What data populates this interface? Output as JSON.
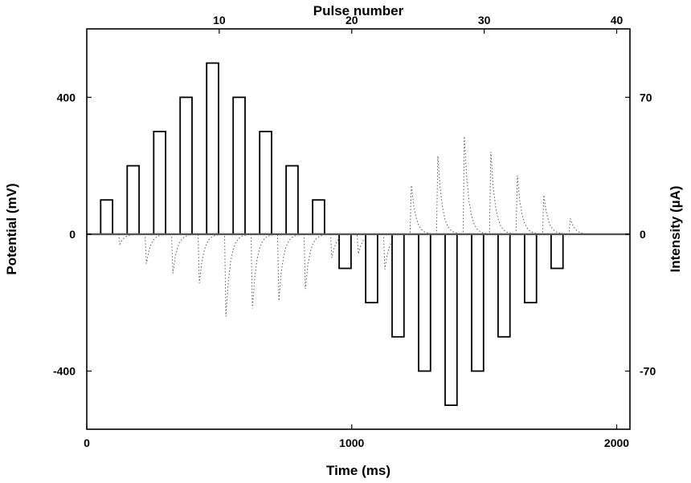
{
  "chart_data": {
    "type": "bar",
    "x_bottom": {
      "label": "Time (ms)",
      "range": [
        0,
        2050
      ],
      "ticks": [
        0,
        1000,
        2000
      ],
      "tick_labels": [
        "0",
        "1000",
        "2000"
      ]
    },
    "x_top": {
      "label": "Pulse number",
      "range": [
        0,
        41
      ],
      "ticks": [
        10,
        20,
        30,
        40
      ],
      "tick_labels": [
        "10",
        "20",
        "30",
        "40"
      ]
    },
    "y_left": {
      "label": "Potential (mV)",
      "range": [
        -570,
        600
      ],
      "ticks": [
        -400,
        0,
        400
      ],
      "tick_labels": [
        "-400",
        "0",
        "400"
      ]
    },
    "y_right": {
      "label": "Intensity (µA)",
      "range": [
        -99.75,
        105
      ],
      "ticks": [
        -70,
        0,
        70
      ],
      "tick_labels": [
        "-70",
        "0",
        "70"
      ]
    },
    "potential_pulses": {
      "time_ms": [
        75,
        175,
        275,
        375,
        475,
        575,
        675,
        775,
        875,
        975,
        1075,
        1175,
        1275,
        1375,
        1475,
        1575,
        1675,
        1775
      ],
      "potential_mV": [
        100,
        200,
        300,
        400,
        500,
        400,
        300,
        200,
        100,
        -100,
        -200,
        -300,
        -400,
        -500,
        -400,
        -300,
        -200,
        -100
      ],
      "pulse_width_ms": 45
    },
    "current_peaks": {
      "time_ms": [
        125,
        225,
        325,
        425,
        525,
        625,
        725,
        825,
        925,
        1025,
        1125,
        1225,
        1325,
        1425,
        1525,
        1625,
        1725,
        1825
      ],
      "intensity_uA": [
        -5,
        -15,
        -20,
        -25,
        -42,
        -38,
        -34,
        -28,
        -12,
        -10,
        -18,
        25,
        40,
        50,
        42,
        30,
        20,
        8
      ]
    },
    "grid": false
  }
}
